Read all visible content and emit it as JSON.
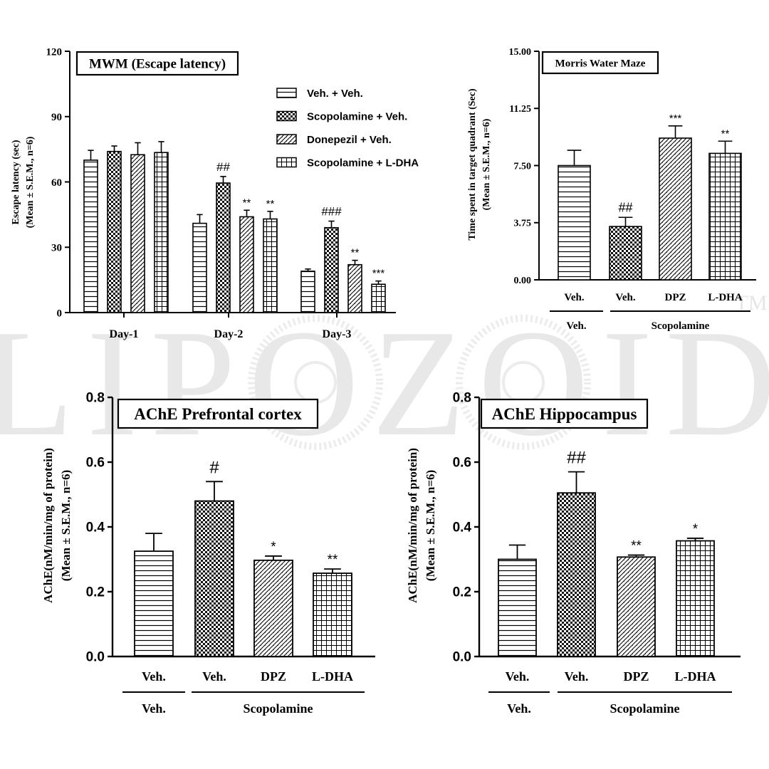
{
  "watermark": {
    "text": "LIPOZOID",
    "mark": "TM"
  },
  "chart_data": [
    {
      "id": "c1",
      "type": "bar",
      "title": "MWM (Escape latency)",
      "xlabel": "",
      "ylabel": "Escape latency (sec)",
      "ylabel2": "(Mean ± S.E.M., n=6)",
      "ylim": [
        0,
        120
      ],
      "yticks": [
        "0",
        "30",
        "60",
        "90",
        "120"
      ],
      "categories": [
        "Day-1",
        "Day-2",
        "Day-3"
      ],
      "legend_position": "top-right",
      "series": [
        {
          "name": "Veh. + Veh.",
          "pattern": "hlines",
          "values": [
            70,
            41,
            19
          ],
          "errors": [
            4.5,
            4,
            1
          ],
          "sig": [
            "",
            "",
            ""
          ]
        },
        {
          "name": "Scopolamine + Veh.",
          "pattern": "check",
          "values": [
            74,
            59.5,
            39
          ],
          "errors": [
            2.5,
            3,
            3
          ],
          "sig": [
            "",
            "##",
            "###"
          ]
        },
        {
          "name": "Donepezil + Veh.",
          "pattern": "diag",
          "values": [
            72.5,
            44,
            22
          ],
          "errors": [
            5.5,
            3,
            2
          ],
          "sig": [
            "",
            "**",
            "**"
          ]
        },
        {
          "name": "Scopolamine + L-DHA",
          "pattern": "grid",
          "values": [
            73.5,
            43,
            13
          ],
          "errors": [
            5,
            3.5,
            1.5
          ],
          "sig": [
            "",
            "**",
            "***"
          ]
        }
      ]
    },
    {
      "id": "c2",
      "type": "bar",
      "title": "Morris Water Maze",
      "ylabel": "Time spent in target quadrant (Sec)",
      "ylabel2": "(Mean ± S.E.M., n=6)",
      "ylim": [
        0,
        15
      ],
      "yticks": [
        "0.00",
        "3.75",
        "7.50",
        "11.25",
        "15.00"
      ],
      "categories": [
        "Veh.",
        "Veh.",
        "DPZ",
        "L-DHA"
      ],
      "patterns": [
        "hlines",
        "check",
        "diag",
        "grid"
      ],
      "values": [
        7.5,
        3.5,
        9.3,
        8.3
      ],
      "errors": [
        1,
        0.6,
        0.8,
        0.8
      ],
      "sig": [
        "",
        "##",
        "***",
        "**"
      ],
      "groups": [
        "Veh.",
        "Scopolamine"
      ]
    },
    {
      "id": "c3",
      "type": "bar",
      "title": "AChE Prefrontal cortex",
      "ylabel": "AChE(nM/min/mg of protein)",
      "ylabel2": "(Mean ± S.E.M., n=6)",
      "ylim": [
        0,
        0.8
      ],
      "yticks": [
        "0.0",
        "0.2",
        "0.4",
        "0.6",
        "0.8"
      ],
      "categories": [
        "Veh.",
        "Veh.",
        "DPZ",
        "L-DHA"
      ],
      "patterns": [
        "hlines",
        "check",
        "diag",
        "grid"
      ],
      "values": [
        0.325,
        0.48,
        0.297,
        0.257
      ],
      "errors": [
        0.055,
        0.06,
        0.013,
        0.013
      ],
      "sig": [
        "",
        "#",
        "*",
        "**"
      ],
      "groups": [
        "Veh.",
        "Scopolamine"
      ]
    },
    {
      "id": "c4",
      "type": "bar",
      "title": "AChE Hippocampus",
      "ylabel": "AChE(nM/min/mg of protein)",
      "ylabel2": "(Mean ± S.E.M., n=6)",
      "ylim": [
        0,
        0.8
      ],
      "yticks": [
        "0.0",
        "0.2",
        "0.4",
        "0.6",
        "0.8"
      ],
      "categories": [
        "Veh.",
        "Veh.",
        "DPZ",
        "L-DHA"
      ],
      "patterns": [
        "hlines",
        "check",
        "diag",
        "grid"
      ],
      "values": [
        0.3,
        0.505,
        0.307,
        0.357
      ],
      "errors": [
        0.044,
        0.065,
        0.006,
        0.008
      ],
      "sig": [
        "",
        "##",
        "**",
        "*"
      ],
      "groups": [
        "Veh.",
        "Scopolamine"
      ]
    }
  ]
}
